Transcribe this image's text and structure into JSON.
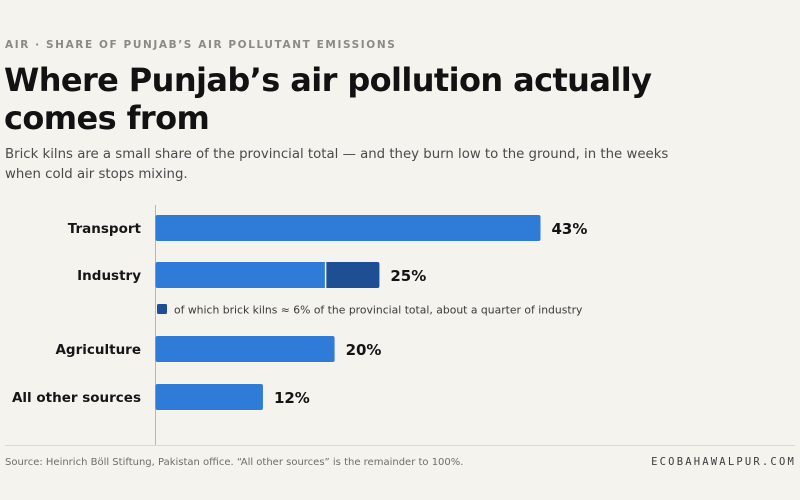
{
  "header": {
    "kicker": "AIR · SHARE OF PUNJAB’S AIR POLLUTANT EMISSIONS",
    "title": "Where Punjab’s air pollution actually comes from",
    "subtitle": "Brick kilns are a small share of the provincial total — and they burn low to the ground, in the weeks when cold air stops mixing."
  },
  "chart_data": {
    "type": "bar",
    "orientation": "horizontal",
    "categories": [
      "Transport",
      "Industry",
      "Agriculture",
      "All other sources"
    ],
    "values": [
      43,
      25,
      20,
      12
    ],
    "value_labels": [
      "43%",
      "25%",
      "20%",
      "12%"
    ],
    "unit": "%",
    "xlim": [
      0,
      50
    ],
    "grid": false,
    "colors": {
      "bar": "#2f7bd8",
      "highlight": "#1e4f95"
    },
    "highlight": {
      "category": "Industry",
      "value": 6,
      "note": "of which brick kilns ≈ 6% of the provincial total, about a quarter of industry"
    }
  },
  "footer": {
    "source": "Source: Heinrich Böll Stiftung, Pakistan office. “All other sources” is the remainder to 100%.",
    "brand": "ECOBAHAWALPUR.COM"
  }
}
